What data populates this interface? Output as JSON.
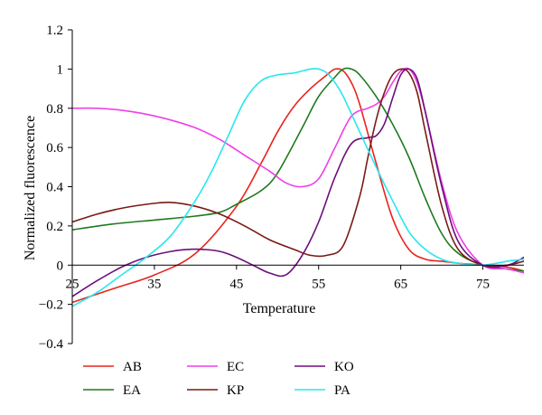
{
  "chart_data": {
    "type": "line",
    "title": "",
    "xlabel": "Temperature",
    "ylabel": "Normalized fluorescence",
    "xlim": [
      25,
      80
    ],
    "ylim": [
      -0.4,
      1.2
    ],
    "xticks": [
      25,
      35,
      45,
      55,
      65,
      75
    ],
    "yticks": [
      -0.4,
      -0.2,
      0,
      0.2,
      0.4,
      0.6,
      0.8,
      1,
      1.2
    ],
    "xtick_labels": [
      "25",
      "35",
      "45",
      "55",
      "65",
      "75"
    ],
    "ytick_labels": [
      "−0.4",
      "−0.2",
      "0",
      "0.2",
      "0.4",
      "0.6",
      "0.8",
      "1",
      "1.2"
    ],
    "grid": false,
    "legend_position": "bottom",
    "series": [
      {
        "name": "AB",
        "color": "#e8241c",
        "x": [
          25,
          30,
          35,
          40,
          45,
          48,
          50,
          52,
          54,
          56,
          57,
          58,
          59,
          60,
          62,
          64,
          66,
          68,
          70,
          72,
          75,
          78,
          80
        ],
        "y": [
          -0.19,
          -0.12,
          -0.05,
          0.06,
          0.3,
          0.52,
          0.68,
          0.81,
          0.9,
          0.97,
          1.0,
          0.99,
          0.93,
          0.82,
          0.52,
          0.24,
          0.08,
          0.03,
          0.02,
          0.01,
          0.0,
          -0.01,
          -0.03
        ]
      },
      {
        "name": "EA",
        "color": "#1f7a1f",
        "x": [
          25,
          30,
          35,
          40,
          43,
          45,
          48,
          50,
          53,
          55,
          57,
          58,
          59,
          60,
          62,
          64,
          66,
          68,
          70,
          72,
          75,
          78,
          80
        ],
        "y": [
          0.18,
          0.21,
          0.23,
          0.25,
          0.27,
          0.31,
          0.38,
          0.47,
          0.7,
          0.86,
          0.96,
          1.0,
          1.0,
          0.97,
          0.86,
          0.72,
          0.55,
          0.34,
          0.16,
          0.06,
          0.0,
          -0.02,
          -0.03
        ]
      },
      {
        "name": "EC",
        "color": "#ee3fe8",
        "x": [
          25,
          28,
          31,
          34,
          37,
          40,
          43,
          46,
          49,
          51,
          53,
          55,
          57,
          59,
          61,
          62,
          63,
          64,
          65,
          66,
          67,
          68,
          70,
          72,
          75,
          78,
          80
        ],
        "y": [
          0.8,
          0.8,
          0.79,
          0.77,
          0.74,
          0.7,
          0.64,
          0.56,
          0.48,
          0.42,
          0.4,
          0.44,
          0.6,
          0.76,
          0.8,
          0.82,
          0.86,
          0.93,
          0.99,
          1.0,
          0.93,
          0.78,
          0.42,
          0.16,
          0.0,
          -0.02,
          -0.04
        ]
      },
      {
        "name": "KP",
        "color": "#7a1a14",
        "x": [
          25,
          28,
          31,
          34,
          37,
          40,
          43,
          46,
          49,
          52,
          54,
          56,
          58,
          60,
          61,
          62,
          63,
          64,
          65,
          66,
          67,
          68,
          70,
          72,
          75,
          78,
          80
        ],
        "y": [
          0.22,
          0.26,
          0.29,
          0.31,
          0.32,
          0.3,
          0.26,
          0.2,
          0.13,
          0.08,
          0.05,
          0.05,
          0.1,
          0.35,
          0.55,
          0.74,
          0.88,
          0.97,
          1.0,
          0.98,
          0.88,
          0.68,
          0.3,
          0.08,
          0.0,
          0.0,
          0.02
        ]
      },
      {
        "name": "KO",
        "color": "#6c0e7c",
        "x": [
          25,
          28,
          31,
          34,
          37,
          39,
          41,
          43,
          45,
          47,
          49,
          51,
          53,
          55,
          57,
          59,
          61,
          62,
          63,
          64,
          65,
          66,
          67,
          68,
          70,
          72,
          75,
          78,
          80
        ],
        "y": [
          -0.16,
          -0.08,
          -0.01,
          0.04,
          0.07,
          0.08,
          0.08,
          0.07,
          0.04,
          0.0,
          -0.04,
          -0.05,
          0.05,
          0.22,
          0.45,
          0.62,
          0.65,
          0.66,
          0.72,
          0.85,
          0.97,
          1.0,
          0.95,
          0.78,
          0.4,
          0.12,
          0.0,
          0.0,
          0.04
        ]
      },
      {
        "name": "PA",
        "color": "#28e6f0",
        "x": [
          25,
          28,
          31,
          34,
          37,
          40,
          42,
          44,
          46,
          48,
          50,
          52,
          54,
          55,
          56,
          57,
          58,
          60,
          62,
          64,
          66,
          68,
          70,
          72,
          75,
          78,
          80
        ],
        "y": [
          -0.21,
          -0.14,
          -0.05,
          0.04,
          0.15,
          0.33,
          0.48,
          0.66,
          0.84,
          0.94,
          0.97,
          0.98,
          1.0,
          1.0,
          0.98,
          0.93,
          0.86,
          0.68,
          0.5,
          0.33,
          0.17,
          0.08,
          0.03,
          0.01,
          0.0,
          0.02,
          0.03
        ]
      }
    ]
  }
}
